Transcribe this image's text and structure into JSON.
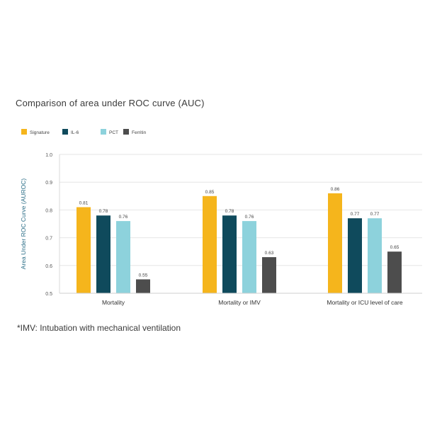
{
  "chart_data": {
    "type": "bar",
    "title": "Comparison of area under ROC curve (AUC)",
    "ylabel": "Area Under ROC Curve (AUROC)",
    "xlabel": "",
    "ylim": [
      0.5,
      1.0
    ],
    "yticks": [
      "0.5",
      "0.6",
      "0.7",
      "0.8",
      "0.9",
      "1.0"
    ],
    "grid": true,
    "legend_position": "top-left",
    "categories": [
      "Mortality",
      "Mortality or IMV",
      "Mortality or ICU level of care"
    ],
    "series": [
      {
        "name": "Signature",
        "color": "#f5b51c",
        "values": [
          0.81,
          0.85,
          0.86
        ],
        "labels": [
          "0.81",
          "0.85",
          "0.86"
        ]
      },
      {
        "name": "IL-6",
        "color": "#0f4a5c",
        "values": [
          0.78,
          0.78,
          0.77
        ],
        "labels": [
          "0.78",
          "0.78",
          "0.77"
        ]
      },
      {
        "name": "PCT",
        "color": "#8dd2dc",
        "values": [
          0.76,
          0.76,
          0.77
        ],
        "labels": [
          "0.76",
          "0.76",
          "0.77"
        ]
      },
      {
        "name": "Ferritin",
        "color": "#4d4d4d",
        "values": [
          0.55,
          0.63,
          0.65
        ],
        "labels": [
          "0.55",
          "0.63",
          "0.65"
        ]
      }
    ]
  },
  "footnote": "*IMV: Intubation with mechanical ventilation"
}
